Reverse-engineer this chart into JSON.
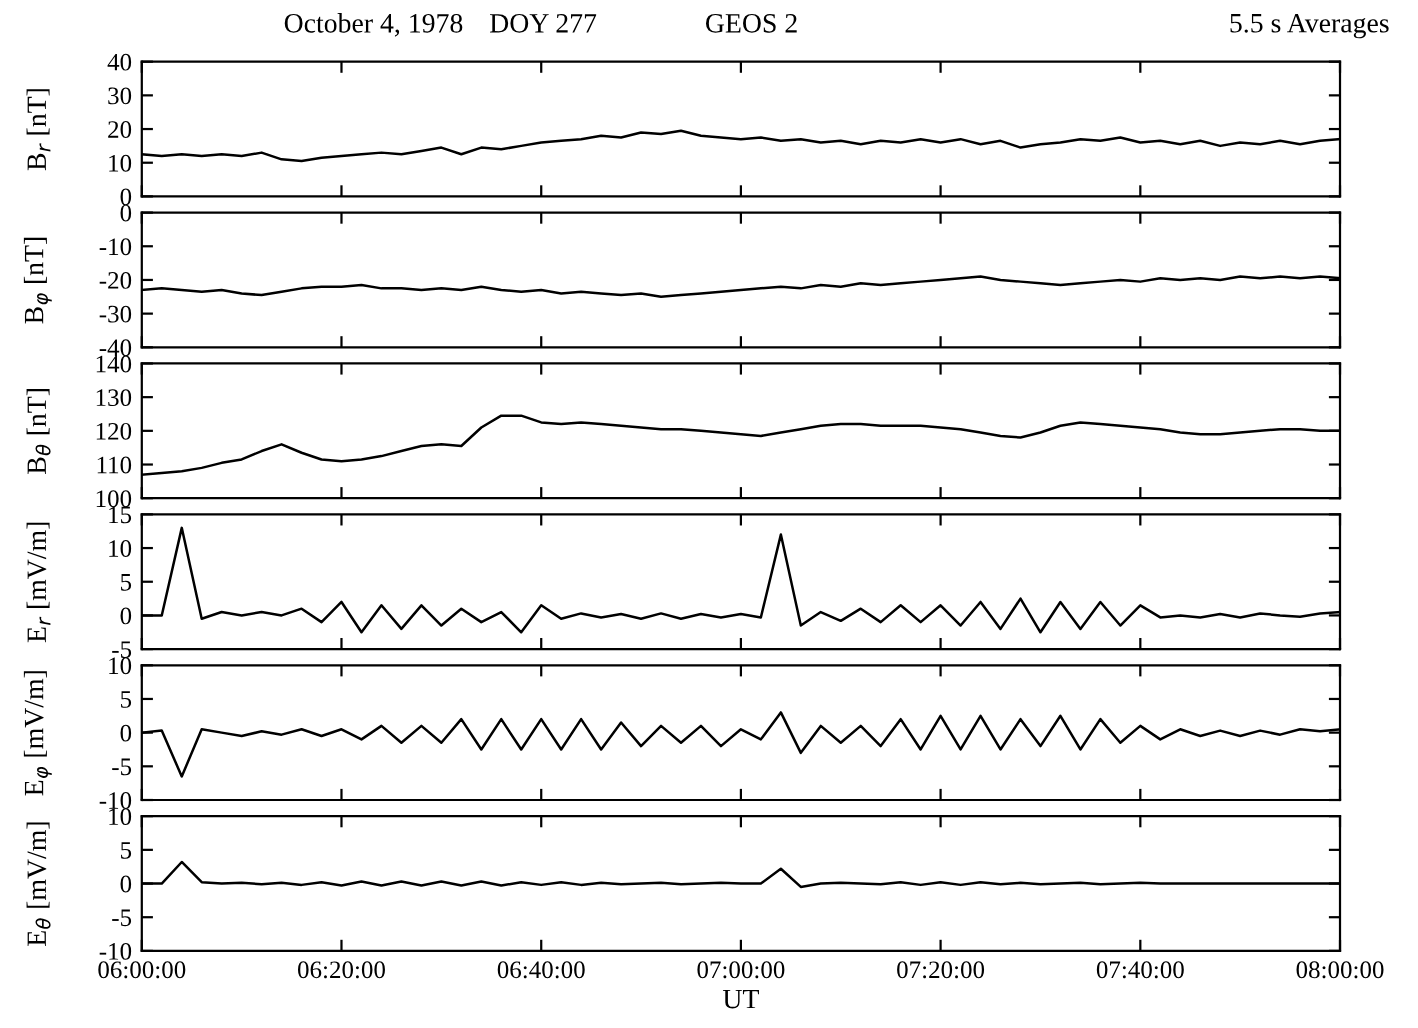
{
  "chart_data": [
    {
      "type": "line",
      "title": "GEOS 2",
      "annotations": [
        "October 4, 1978",
        "DOY 277",
        "5.5 s Averages"
      ],
      "ylabel": "B$_{r}$ [nT]",
      "tick_labels": "y",
      "x": [
        6,
        6.0333,
        6.0667,
        6.1,
        6.1333,
        6.1667,
        6.2,
        6.2333,
        6.2667,
        6.3,
        6.3333,
        6.3667,
        6.4,
        6.4333,
        6.4667,
        6.5,
        6.5333,
        6.5667,
        6.6,
        6.6333,
        6.6667,
        6.7,
        6.7333,
        6.7667,
        6.8,
        6.8333,
        6.8667,
        6.9,
        6.9333,
        6.9667,
        7,
        7.0333,
        7.0667,
        7.1,
        7.1333,
        7.1667,
        7.2,
        7.2333,
        7.2667,
        7.3,
        7.3333,
        7.3667,
        7.4,
        7.4333,
        7.4667,
        7.5,
        7.5333,
        7.5667,
        7.6,
        7.6333,
        7.6667,
        7.7,
        7.7333,
        7.7667,
        7.8,
        7.8333,
        7.8667,
        7.9,
        7.9333,
        7.9667,
        8
      ],
      "series": [
        {
          "color": "#000000",
          "values": [
            12.5,
            12,
            12.5,
            12,
            12.5,
            12,
            13,
            11,
            10.5,
            11.5,
            12,
            12.5,
            13,
            12.5,
            13.5,
            14.5,
            12.5,
            14.5,
            14,
            15,
            16,
            16.5,
            17,
            18,
            17.5,
            19,
            18.5,
            19.5,
            18,
            17.5,
            17,
            17.5,
            16.5,
            17,
            16,
            16.5,
            15.5,
            16.5,
            16,
            17,
            16,
            17,
            15.5,
            16.5,
            14.5,
            15.5,
            16,
            17,
            16.5,
            17.5,
            16,
            16.5,
            15.5,
            16.5,
            15,
            16,
            15.5,
            16.5,
            15.5,
            16.5,
            17
          ]
        }
      ],
      "xlim": [
        6,
        8
      ],
      "xticks": [
        {
          "value": 6,
          "label": null
        },
        {
          "value": 6.3333,
          "label": null
        },
        {
          "value": 6.6667,
          "label": null
        },
        {
          "value": 7,
          "label": null
        },
        {
          "value": 7.3333,
          "label": null
        },
        {
          "value": 7.6667,
          "label": null
        },
        {
          "value": 8,
          "label": null
        }
      ],
      "ylim": [
        0,
        40
      ],
      "yticks": [
        0,
        10,
        20,
        30,
        40
      ]
    },
    {
      "type": "line",
      "ylabel": "B$_{φ}$ [nT]",
      "tick_labels": "y",
      "x": [
        6,
        6.0333,
        6.0667,
        6.1,
        6.1333,
        6.1667,
        6.2,
        6.2333,
        6.2667,
        6.3,
        6.3333,
        6.3667,
        6.4,
        6.4333,
        6.4667,
        6.5,
        6.5333,
        6.5667,
        6.6,
        6.6333,
        6.6667,
        6.7,
        6.7333,
        6.7667,
        6.8,
        6.8333,
        6.8667,
        6.9,
        6.9333,
        6.9667,
        7,
        7.0333,
        7.0667,
        7.1,
        7.1333,
        7.1667,
        7.2,
        7.2333,
        7.2667,
        7.3,
        7.3333,
        7.3667,
        7.4,
        7.4333,
        7.4667,
        7.5,
        7.5333,
        7.5667,
        7.6,
        7.6333,
        7.6667,
        7.7,
        7.7333,
        7.7667,
        7.8,
        7.8333,
        7.8667,
        7.9,
        7.9333,
        7.9667,
        8
      ],
      "series": [
        {
          "color": "#000000",
          "values": [
            -23,
            -22.5,
            -23,
            -23.5,
            -23,
            -24,
            -24.5,
            -23.5,
            -22.5,
            -22,
            -22,
            -21.5,
            -22.5,
            -22.5,
            -23,
            -22.5,
            -23,
            -22,
            -23,
            -23.5,
            -23,
            -24,
            -23.5,
            -24,
            -24.5,
            -24,
            -25,
            -24.5,
            -24,
            -23.5,
            -23,
            -22.5,
            -22,
            -22.5,
            -21.5,
            -22,
            -21,
            -21.5,
            -21,
            -20.5,
            -20,
            -19.5,
            -19,
            -20,
            -20.5,
            -21,
            -21.5,
            -21,
            -20.5,
            -20,
            -20.5,
            -19.5,
            -20,
            -19.5,
            -20,
            -19,
            -19.5,
            -19,
            -19.5,
            -19,
            -19.5
          ]
        }
      ],
      "xlim": [
        6,
        8
      ],
      "xticks": [
        {
          "value": 6,
          "label": null
        },
        {
          "value": 6.3333,
          "label": null
        },
        {
          "value": 6.6667,
          "label": null
        },
        {
          "value": 7,
          "label": null
        },
        {
          "value": 7.3333,
          "label": null
        },
        {
          "value": 7.6667,
          "label": null
        },
        {
          "value": 8,
          "label": null
        }
      ],
      "ylim": [
        -40,
        0
      ],
      "yticks": [
        -40,
        -30,
        -20,
        -10,
        0
      ]
    },
    {
      "type": "line",
      "ylabel": "B$_{θ}$ [nT]",
      "tick_labels": "y",
      "x": [
        6,
        6.0333,
        6.0667,
        6.1,
        6.1333,
        6.1667,
        6.2,
        6.2333,
        6.2667,
        6.3,
        6.3333,
        6.3667,
        6.4,
        6.4333,
        6.4667,
        6.5,
        6.5333,
        6.5667,
        6.6,
        6.6333,
        6.6667,
        6.7,
        6.7333,
        6.7667,
        6.8,
        6.8333,
        6.8667,
        6.9,
        6.9333,
        6.9667,
        7,
        7.0333,
        7.0667,
        7.1,
        7.1333,
        7.1667,
        7.2,
        7.2333,
        7.2667,
        7.3,
        7.3333,
        7.3667,
        7.4,
        7.4333,
        7.4667,
        7.5,
        7.5333,
        7.5667,
        7.6,
        7.6333,
        7.6667,
        7.7,
        7.7333,
        7.7667,
        7.8,
        7.8333,
        7.8667,
        7.9,
        7.9333,
        7.9667,
        8
      ],
      "series": [
        {
          "color": "#000000",
          "values": [
            107,
            107.5,
            108,
            109,
            110.5,
            111.5,
            114,
            116,
            113.5,
            111.5,
            111,
            111.5,
            112.5,
            114,
            115.5,
            116,
            115.5,
            121,
            124.5,
            124.5,
            122.5,
            122,
            122.5,
            122,
            121.5,
            121,
            120.5,
            120.5,
            120,
            119.5,
            119,
            118.5,
            119.5,
            120.5,
            121.5,
            122,
            122,
            121.5,
            121.5,
            121.5,
            121,
            120.5,
            119.5,
            118.5,
            118,
            119.5,
            121.5,
            122.5,
            122,
            121.5,
            121,
            120.5,
            119.5,
            119,
            119,
            119.5,
            120,
            120.5,
            120.5,
            120,
            120
          ]
        }
      ],
      "xlim": [
        6,
        8
      ],
      "xticks": [
        {
          "value": 6,
          "label": null
        },
        {
          "value": 6.3333,
          "label": null
        },
        {
          "value": 6.6667,
          "label": null
        },
        {
          "value": 7,
          "label": null
        },
        {
          "value": 7.3333,
          "label": null
        },
        {
          "value": 7.6667,
          "label": null
        },
        {
          "value": 8,
          "label": null
        }
      ],
      "ylim": [
        100,
        140
      ],
      "yticks": [
        100,
        110,
        120,
        130,
        140
      ]
    },
    {
      "type": "line",
      "ylabel": "E$_{r}$ [mV/m]",
      "tick_labels": "y",
      "x": [
        6,
        6.0333,
        6.0667,
        6.1,
        6.1333,
        6.1667,
        6.2,
        6.2333,
        6.2667,
        6.3,
        6.3333,
        6.3667,
        6.4,
        6.4333,
        6.4667,
        6.5,
        6.5333,
        6.5667,
        6.6,
        6.6333,
        6.6667,
        6.7,
        6.7333,
        6.7667,
        6.8,
        6.8333,
        6.8667,
        6.9,
        6.9333,
        6.9667,
        7,
        7.0333,
        7.0667,
        7.1,
        7.1333,
        7.1667,
        7.2,
        7.2333,
        7.2667,
        7.3,
        7.3333,
        7.3667,
        7.4,
        7.4333,
        7.4667,
        7.5,
        7.5333,
        7.5667,
        7.6,
        7.6333,
        7.6667,
        7.7,
        7.7333,
        7.7667,
        7.8,
        7.8333,
        7.8667,
        7.9,
        7.9333,
        7.9667,
        8
      ],
      "series": [
        {
          "color": "#000000",
          "values": [
            0,
            0,
            13,
            -0.5,
            0.5,
            0,
            0.5,
            0,
            1,
            -1,
            2,
            -2.5,
            1.5,
            -2,
            1.5,
            -1.5,
            1,
            -1,
            0.5,
            -2.5,
            1.5,
            -0.5,
            0.3,
            -0.3,
            0.2,
            -0.5,
            0.3,
            -0.5,
            0.2,
            -0.3,
            0.2,
            -0.3,
            12,
            -1.5,
            0.5,
            -0.8,
            1,
            -1,
            1.5,
            -1,
            1.5,
            -1.5,
            2,
            -2,
            2.5,
            -2.5,
            2,
            -2,
            2,
            -1.5,
            1.5,
            -0.3,
            0,
            -0.3,
            0.2,
            -0.3,
            0.3,
            0,
            -0.2,
            0.3,
            0.5
          ]
        }
      ],
      "xlim": [
        6,
        8
      ],
      "xticks": [
        {
          "value": 6,
          "label": null
        },
        {
          "value": 6.3333,
          "label": null
        },
        {
          "value": 6.6667,
          "label": null
        },
        {
          "value": 7,
          "label": null
        },
        {
          "value": 7.3333,
          "label": null
        },
        {
          "value": 7.6667,
          "label": null
        },
        {
          "value": 8,
          "label": null
        }
      ],
      "ylim": [
        -5,
        15
      ],
      "yticks": [
        -5,
        0,
        5,
        10,
        15
      ]
    },
    {
      "type": "line",
      "ylabel": "E$_{φ}$ [mV/m]",
      "tick_labels": "y",
      "x": [
        6,
        6.0333,
        6.0667,
        6.1,
        6.1333,
        6.1667,
        6.2,
        6.2333,
        6.2667,
        6.3,
        6.3333,
        6.3667,
        6.4,
        6.4333,
        6.4667,
        6.5,
        6.5333,
        6.5667,
        6.6,
        6.6333,
        6.6667,
        6.7,
        6.7333,
        6.7667,
        6.8,
        6.8333,
        6.8667,
        6.9,
        6.9333,
        6.9667,
        7,
        7.0333,
        7.0667,
        7.1,
        7.1333,
        7.1667,
        7.2,
        7.2333,
        7.2667,
        7.3,
        7.3333,
        7.3667,
        7.4,
        7.4333,
        7.4667,
        7.5,
        7.5333,
        7.5667,
        7.6,
        7.6333,
        7.6667,
        7.7,
        7.7333,
        7.7667,
        7.8,
        7.8333,
        7.8667,
        7.9,
        7.9333,
        7.9667,
        8
      ],
      "series": [
        {
          "color": "#000000",
          "values": [
            0,
            0.3,
            -6.5,
            0.5,
            0,
            -0.5,
            0.2,
            -0.3,
            0.5,
            -0.5,
            0.5,
            -1,
            1,
            -1.5,
            1,
            -1.5,
            2,
            -2.5,
            2,
            -2.5,
            2,
            -2.5,
            2,
            -2.5,
            1.5,
            -2,
            1,
            -1.5,
            1,
            -2,
            0.5,
            -1,
            3,
            -3,
            1,
            -1.5,
            1,
            -2,
            2,
            -2.5,
            2.5,
            -2.5,
            2.5,
            -2.5,
            2,
            -2,
            2.5,
            -2.5,
            2,
            -1.5,
            1,
            -1,
            0.5,
            -0.5,
            0.3,
            -0.5,
            0.3,
            -0.3,
            0.5,
            0.2,
            0.5
          ]
        }
      ],
      "xlim": [
        6,
        8
      ],
      "xticks": [
        {
          "value": 6,
          "label": null
        },
        {
          "value": 6.3333,
          "label": null
        },
        {
          "value": 6.6667,
          "label": null
        },
        {
          "value": 7,
          "label": null
        },
        {
          "value": 7.3333,
          "label": null
        },
        {
          "value": 7.6667,
          "label": null
        },
        {
          "value": 8,
          "label": null
        }
      ],
      "ylim": [
        -10,
        10
      ],
      "yticks": [
        -10,
        -5,
        0,
        5,
        10
      ]
    },
    {
      "type": "line",
      "ylabel": "E$_{θ}$ [mV/m]",
      "xlabel": "UT",
      "x": [
        6,
        6.0333,
        6.0667,
        6.1,
        6.1333,
        6.1667,
        6.2,
        6.2333,
        6.2667,
        6.3,
        6.3333,
        6.3667,
        6.4,
        6.4333,
        6.4667,
        6.5,
        6.5333,
        6.5667,
        6.6,
        6.6333,
        6.6667,
        6.7,
        6.7333,
        6.7667,
        6.8,
        6.8333,
        6.8667,
        6.9,
        6.9333,
        6.9667,
        7,
        7.0333,
        7.0667,
        7.1,
        7.1333,
        7.1667,
        7.2,
        7.2333,
        7.2667,
        7.3,
        7.3333,
        7.3667,
        7.4,
        7.4333,
        7.4667,
        7.5,
        7.5333,
        7.5667,
        7.6,
        7.6333,
        7.6667,
        7.7,
        7.7333,
        7.7667,
        7.8,
        7.8333,
        7.8667,
        7.9,
        7.9333,
        7.9667,
        8
      ],
      "series": [
        {
          "color": "#000000",
          "values": [
            0,
            0,
            3.2,
            0.2,
            0,
            0.1,
            -0.1,
            0.1,
            -0.2,
            0.2,
            -0.3,
            0.3,
            -0.3,
            0.3,
            -0.3,
            0.3,
            -0.3,
            0.3,
            -0.3,
            0.2,
            -0.2,
            0.2,
            -0.2,
            0.1,
            -0.1,
            0,
            0.1,
            -0.1,
            0,
            0.1,
            0,
            0,
            2.2,
            -0.5,
            0,
            0.1,
            0,
            -0.1,
            0.2,
            -0.2,
            0.2,
            -0.2,
            0.2,
            -0.1,
            0.1,
            -0.1,
            0,
            0.1,
            -0.1,
            0,
            0.1,
            0,
            0,
            0,
            0,
            0,
            0,
            0,
            0,
            0,
            0
          ]
        }
      ],
      "xlim": [
        6,
        8
      ],
      "xticks": [
        {
          "value": 6,
          "label": "06:00:00"
        },
        {
          "value": 6.3333,
          "label": "06:20:00"
        },
        {
          "value": 6.6667,
          "label": "06:40:00"
        },
        {
          "value": 7,
          "label": "07:00:00"
        },
        {
          "value": 7.3333,
          "label": "07:20:00"
        },
        {
          "value": 7.6667,
          "label": "07:40:00"
        },
        {
          "value": 8,
          "label": "08:00:00"
        }
      ],
      "ylim": [
        -10,
        10
      ],
      "yticks": [
        -10,
        -5,
        0,
        5,
        10
      ]
    }
  ]
}
